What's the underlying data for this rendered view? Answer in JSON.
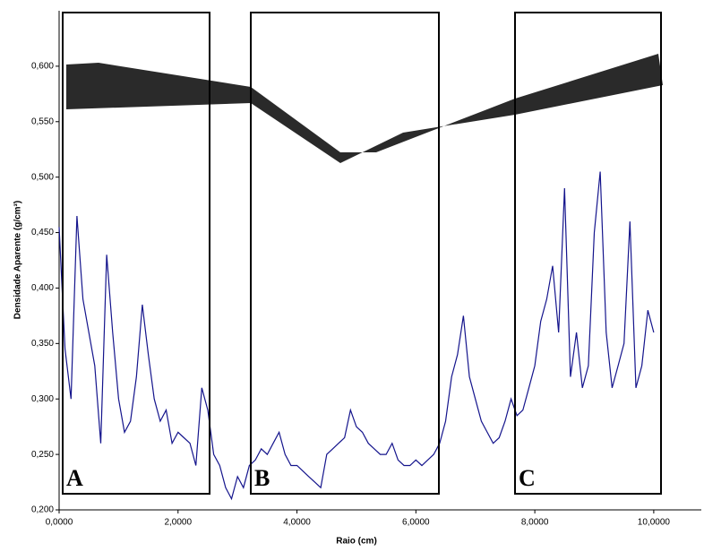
{
  "chart_data": {
    "type": "line",
    "x_label": "Raio (cm)",
    "y_label": "Densidade Aparente (g/cm³)",
    "annotations": [
      "A",
      "B",
      "C"
    ],
    "xlim": [
      0,
      10.8
    ],
    "ylim": [
      0.2,
      0.65
    ],
    "xticks": [
      {
        "value": 0,
        "label": "0,0000"
      },
      {
        "value": 2,
        "label": "2,0000"
      },
      {
        "value": 4,
        "label": "4,0000"
      },
      {
        "value": 6,
        "label": "6,0000"
      },
      {
        "value": 8,
        "label": "8,0000"
      },
      {
        "value": 10,
        "label": "10,0000"
      }
    ],
    "yticks": [
      {
        "value": 0.2,
        "label": "0,200"
      },
      {
        "value": 0.25,
        "label": "0,250"
      },
      {
        "value": 0.3,
        "label": "0,300"
      },
      {
        "value": 0.35,
        "label": "0,350"
      },
      {
        "value": 0.4,
        "label": "0,400"
      },
      {
        "value": 0.45,
        "label": "0,450"
      },
      {
        "value": 0.5,
        "label": "0,500"
      },
      {
        "value": 0.55,
        "label": "0,550"
      },
      {
        "value": 0.6,
        "label": "0,600"
      }
    ],
    "grid": false,
    "x": [
      0,
      0.1,
      0.2,
      0.3,
      0.4,
      0.5,
      0.6,
      0.7,
      0.8,
      0.9,
      1,
      1.1,
      1.2,
      1.3,
      1.4,
      1.5,
      1.6,
      1.7,
      1.8,
      1.9,
      2,
      2.1,
      2.2,
      2.3,
      2.4,
      2.5,
      2.6,
      2.7,
      2.8,
      2.9,
      3,
      3.1,
      3.2,
      3.3,
      3.4,
      3.5,
      3.6,
      3.7,
      3.8,
      3.9,
      4,
      4.1,
      4.2,
      4.3,
      4.4,
      4.5,
      4.6,
      4.7,
      4.8,
      4.9,
      5,
      5.1,
      5.2,
      5.3,
      5.4,
      5.5,
      5.6,
      5.7,
      5.8,
      5.9,
      6,
      6.1,
      6.2,
      6.3,
      6.4,
      6.5,
      6.6,
      6.7,
      6.8,
      6.9,
      7,
      7.1,
      7.2,
      7.3,
      7.4,
      7.5,
      7.6,
      7.7,
      7.8,
      7.9,
      8,
      8.1,
      8.2,
      8.3,
      8.4,
      8.5,
      8.6,
      8.7,
      8.8,
      8.9,
      9,
      9.1,
      9.2,
      9.3,
      9.4,
      9.5,
      9.6,
      9.7,
      9.8,
      9.9,
      10
    ],
    "series": [
      {
        "color": "#14148c",
        "values": [
          0.455,
          0.345,
          0.3,
          0.465,
          0.39,
          0.36,
          0.33,
          0.26,
          0.43,
          0.36,
          0.3,
          0.27,
          0.28,
          0.32,
          0.385,
          0.34,
          0.3,
          0.28,
          0.29,
          0.26,
          0.27,
          0.265,
          0.26,
          0.24,
          0.31,
          0.29,
          0.25,
          0.24,
          0.22,
          0.21,
          0.23,
          0.22,
          0.24,
          0.245,
          0.255,
          0.25,
          0.26,
          0.27,
          0.25,
          0.24,
          0.24,
          0.235,
          0.23,
          0.225,
          0.22,
          0.25,
          0.255,
          0.26,
          0.265,
          0.29,
          0.275,
          0.27,
          0.26,
          0.255,
          0.25,
          0.25,
          0.26,
          0.245,
          0.24,
          0.24,
          0.245,
          0.24,
          0.245,
          0.25,
          0.26,
          0.28,
          0.32,
          0.34,
          0.375,
          0.32,
          0.3,
          0.28,
          0.27,
          0.26,
          0.265,
          0.28,
          0.3,
          0.285,
          0.29,
          0.31,
          0.33,
          0.37,
          0.39,
          0.42,
          0.36,
          0.49,
          0.32,
          0.36,
          0.31,
          0.33,
          0.45,
          0.505,
          0.36,
          0.31,
          0.33,
          0.35,
          0.46,
          0.31,
          0.33,
          0.38,
          0.36
        ]
      }
    ]
  }
}
